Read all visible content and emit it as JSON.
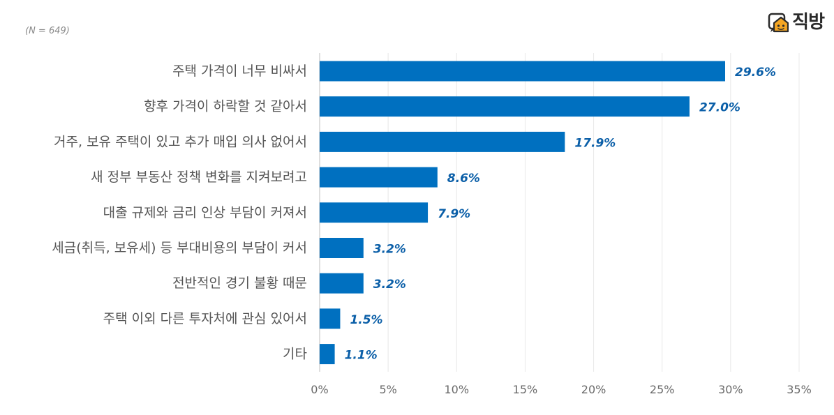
{
  "sample_note": "(N = 649)",
  "brand": {
    "logo_text": "직방",
    "logo_icon": "house-chat-icon",
    "logo_color": "#f5a623"
  },
  "colors": {
    "bar": "#0070c0",
    "value_label": "#0b5fa8",
    "grid": "#e8e8e8"
  },
  "chart_data": {
    "type": "bar",
    "orientation": "horizontal",
    "categories": [
      "주택 가격이 너무 비싸서",
      "향후 가격이 하락할 것 같아서",
      "거주, 보유 주택이 있고 추가 매입 의사 없어서",
      "새 정부 부동산 정책 변화를 지켜보려고",
      "대출 규제와 금리 인상 부담이 커져서",
      "세금(취득, 보유세) 등 부대비용의 부담이 커서",
      "전반적인 경기 불황 때문",
      "주택 이외 다른 투자처에 관심 있어서",
      "기타"
    ],
    "values": [
      29.6,
      27.0,
      17.9,
      8.6,
      7.9,
      3.2,
      3.2,
      1.5,
      1.1
    ],
    "value_labels": [
      "29.6%",
      "27.0%",
      "17.9%",
      "8.6%",
      "7.9%",
      "3.2%",
      "3.2%",
      "1.5%",
      "1.1%"
    ],
    "xlim": [
      0,
      35
    ],
    "x_ticks": [
      0,
      5,
      10,
      15,
      20,
      25,
      30,
      35
    ],
    "x_tick_labels": [
      "0%",
      "5%",
      "10%",
      "15%",
      "20%",
      "25%",
      "30%",
      "35%"
    ],
    "grid": true,
    "legend": "none"
  }
}
